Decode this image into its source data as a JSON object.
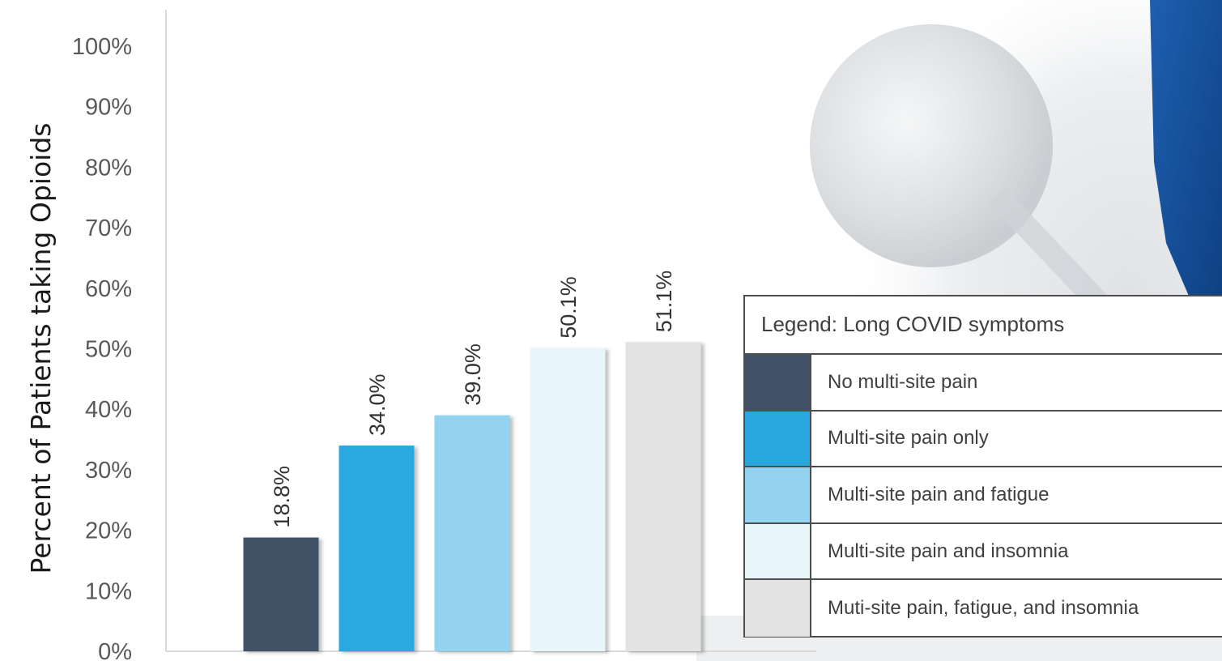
{
  "chart_data": {
    "type": "bar",
    "categories": [
      "No multi-site pain",
      "Multi-site pain only",
      "Multi-site pain and fatigue",
      "Multi-site pain and insomnia",
      "Muti-site pain, fatigue, and insomnia"
    ],
    "values": [
      18.8,
      34.0,
      39.0,
      50.1,
      51.1
    ],
    "data_labels": [
      "18.8%",
      "34.0%",
      "39.0%",
      "50.1%",
      "51.1%"
    ],
    "colors": [
      "#425268",
      "#29a8e0",
      "#93d3ef",
      "#e8f5fb",
      "#e3e3e3"
    ],
    "ylabel": "Percent of Patients taking Opioids",
    "yticks": [
      "0%",
      "10%",
      "20%",
      "30%",
      "40%",
      "50%",
      "60%",
      "70%",
      "80%",
      "90%",
      "100%"
    ],
    "ylim": [
      0,
      100
    ],
    "grid": false,
    "legend": {
      "title": "Legend: Long COVID symptoms",
      "position": "right"
    }
  }
}
